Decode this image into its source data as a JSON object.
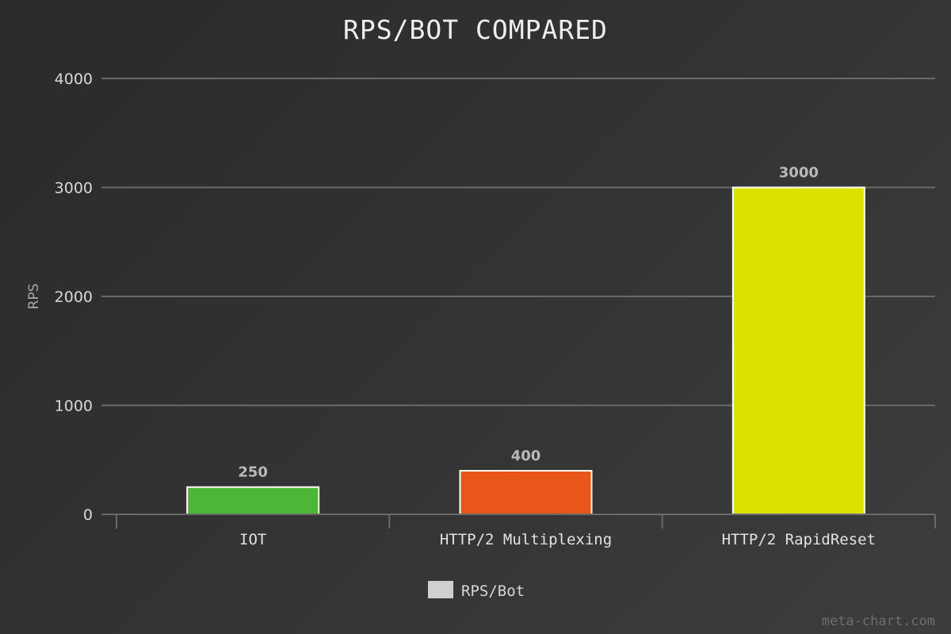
{
  "chart_data": {
    "type": "bar",
    "title": "RPS/BOT COMPARED",
    "xlabel": "",
    "ylabel": "RPS",
    "categories": [
      "IOT",
      "HTTP/2 Multiplexing",
      "HTTP/2 RapidReset"
    ],
    "series": [
      {
        "name": "RPS/Bot",
        "values": [
          250,
          400,
          3000
        ],
        "colors": [
          "#4db637",
          "#e8561a",
          "#dde200"
        ]
      }
    ],
    "ylim": [
      0,
      4000
    ],
    "yticks": [
      0,
      1000,
      2000,
      3000,
      4000
    ],
    "data_labels": [
      "250",
      "400",
      "3000"
    ],
    "grid": true,
    "legend_position": "bottom-center",
    "legend_swatch_color": "#d0d0d0"
  },
  "watermark": "meta-chart.com"
}
